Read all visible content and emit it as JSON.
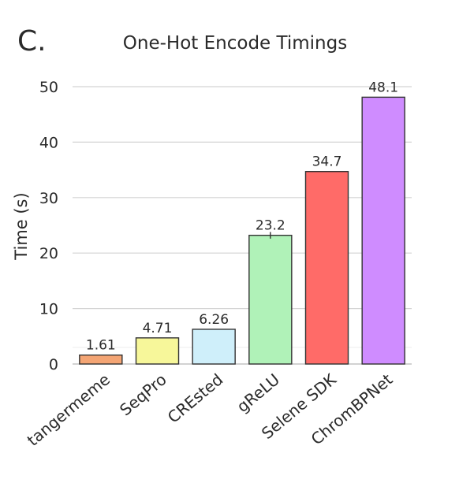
{
  "panel_label": "C.",
  "chart_data": {
    "type": "bar",
    "title": "One-Hot Encode Timings",
    "xlabel": "",
    "ylabel": "Time (s)",
    "ylim": [
      0,
      50
    ],
    "yticks": [
      0,
      10,
      20,
      30,
      40,
      50
    ],
    "grid": true,
    "categories": [
      "tangermeme",
      "SeqPro",
      "CREsted",
      "gReLU",
      "Selene SDK",
      "ChromBPNet"
    ],
    "values": [
      1.61,
      4.71,
      6.26,
      23.2,
      34.7,
      48.1
    ],
    "value_labels": [
      "1.61",
      "4.71",
      "6.26",
      "23.2",
      "34.7",
      "48.1"
    ],
    "error": [
      null,
      null,
      null,
      0.6,
      null,
      null
    ],
    "colors": [
      "#f4a574",
      "#f7f79a",
      "#cfeffa",
      "#b0f2b8",
      "#ff6b68",
      "#cf8cff"
    ]
  }
}
